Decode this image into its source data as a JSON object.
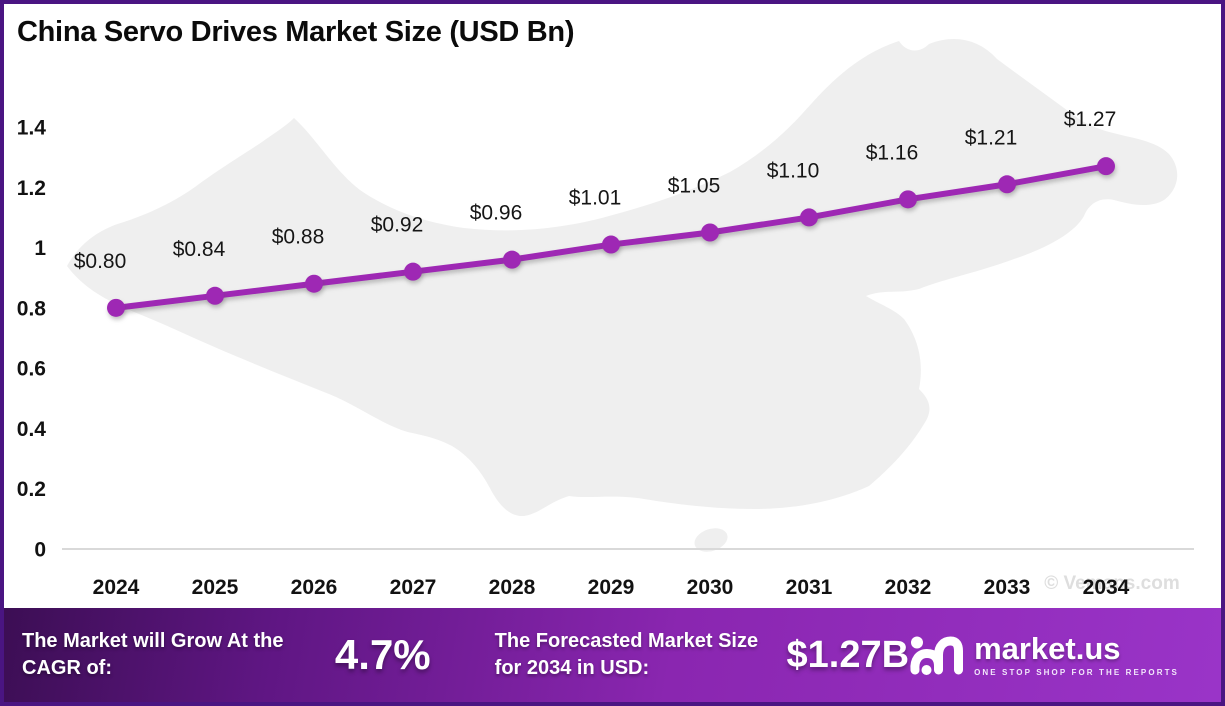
{
  "page": {
    "title": "China Servo Drives Market Size (USD Bn)",
    "watermark": "© Vemaps.com"
  },
  "chart_data": {
    "type": "line",
    "title": "China Servo Drives Market Size (USD Bn)",
    "categories": [
      "2024",
      "2025",
      "2026",
      "2027",
      "2028",
      "2029",
      "2030",
      "2031",
      "2032",
      "2033",
      "2034"
    ],
    "values": [
      0.8,
      0.84,
      0.88,
      0.92,
      0.96,
      1.01,
      1.05,
      1.1,
      1.16,
      1.21,
      1.27
    ],
    "point_labels": [
      "$0.80",
      "$0.84",
      "$0.88",
      "$0.92",
      "$0.96",
      "$1.01",
      "$1.05",
      "$1.10",
      "$1.16",
      "$1.21",
      "$1.27"
    ],
    "xlabel": "",
    "ylabel": "",
    "ylim": [
      0,
      1.4
    ],
    "yticks": [
      0,
      0.2,
      0.4,
      0.6,
      0.8,
      1,
      1.2,
      1.4
    ],
    "ytick_labels": [
      "0",
      "0.2",
      "0.4",
      "0.6",
      "0.8",
      "1",
      "1.2",
      "1.4"
    ],
    "grid": false,
    "legend": "none",
    "line_color": "#9e28b4",
    "marker": "circle",
    "background": "china-map-silhouette"
  },
  "footer": {
    "cagr_label": "The Market will Grow At the CAGR of:",
    "cagr_value": "4.7%",
    "forecast_label": "The Forecasted Market Size for 2034 in USD:",
    "forecast_value": "$1.27B",
    "brand_name": "market.us",
    "brand_tagline": "ONE STOP SHOP FOR THE REPORTS"
  },
  "colors": {
    "accent": "#9e28b4",
    "border": "#4a1582",
    "map_fill": "#efefef",
    "axis_line": "#d9d9d9",
    "banner_start": "#3c0e54",
    "banner_end": "#9a34c8"
  }
}
